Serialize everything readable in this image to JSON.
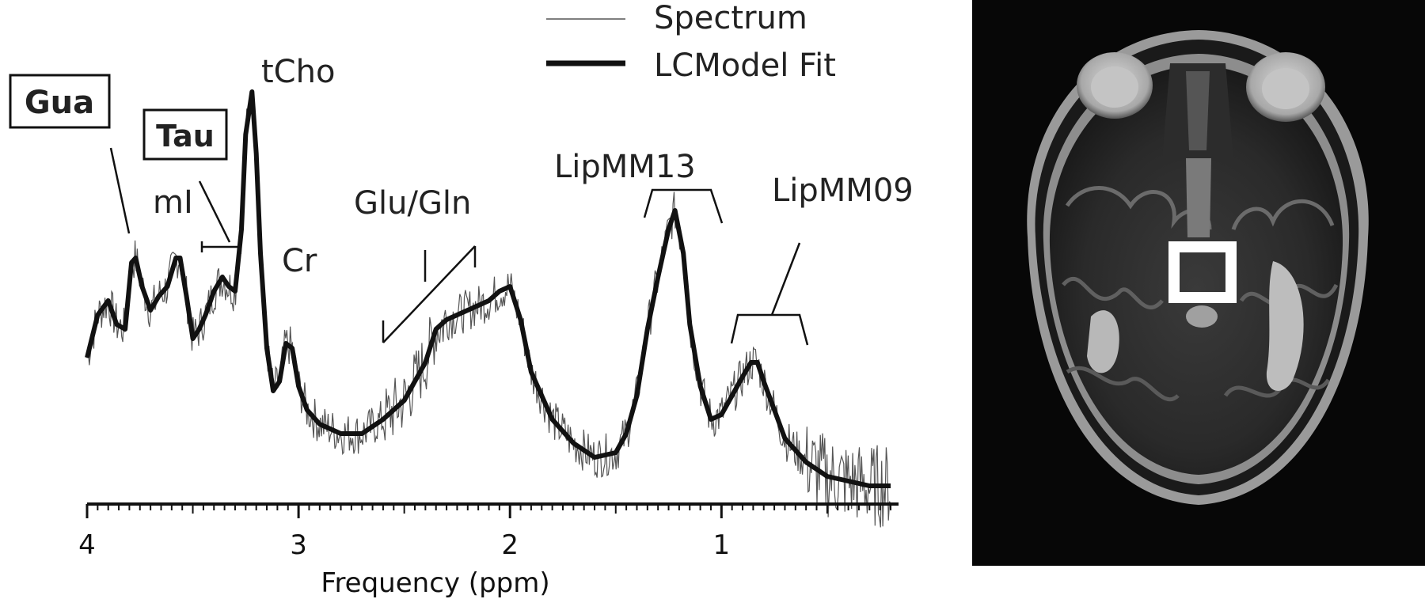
{
  "chart_data": {
    "type": "line",
    "xlabel": "Frequency (ppm)",
    "xlim": [
      4.0,
      0.2
    ],
    "x_reversed": true,
    "x_ticks": [
      4,
      3,
      2,
      1
    ],
    "series": [
      {
        "name": "Spectrum",
        "style": "thin",
        "color": "#555555"
      },
      {
        "name": "LCModel Fit",
        "style": "thick",
        "color": "#111111",
        "x": [
          4.0,
          3.95,
          3.9,
          3.86,
          3.82,
          3.79,
          3.77,
          3.74,
          3.7,
          3.66,
          3.62,
          3.58,
          3.56,
          3.53,
          3.5,
          3.47,
          3.44,
          3.4,
          3.36,
          3.33,
          3.3,
          3.27,
          3.25,
          3.22,
          3.2,
          3.18,
          3.15,
          3.12,
          3.09,
          3.06,
          3.03,
          3.0,
          2.96,
          2.9,
          2.8,
          2.7,
          2.6,
          2.5,
          2.45,
          2.4,
          2.35,
          2.3,
          2.2,
          2.1,
          2.05,
          2.0,
          1.95,
          1.9,
          1.8,
          1.7,
          1.6,
          1.5,
          1.45,
          1.4,
          1.35,
          1.3,
          1.25,
          1.22,
          1.18,
          1.15,
          1.1,
          1.05,
          1.0,
          0.95,
          0.9,
          0.86,
          0.83,
          0.8,
          0.75,
          0.7,
          0.6,
          0.5,
          0.4,
          0.3,
          0.2
        ],
        "y": [
          0.18,
          0.27,
          0.3,
          0.25,
          0.24,
          0.38,
          0.39,
          0.33,
          0.28,
          0.31,
          0.33,
          0.39,
          0.39,
          0.31,
          0.22,
          0.24,
          0.27,
          0.32,
          0.35,
          0.33,
          0.32,
          0.45,
          0.65,
          0.74,
          0.61,
          0.4,
          0.2,
          0.11,
          0.13,
          0.21,
          0.2,
          0.12,
          0.07,
          0.04,
          0.02,
          0.02,
          0.05,
          0.09,
          0.13,
          0.17,
          0.24,
          0.26,
          0.28,
          0.3,
          0.32,
          0.33,
          0.26,
          0.15,
          0.05,
          0.0,
          -0.03,
          -0.02,
          0.02,
          0.1,
          0.24,
          0.35,
          0.45,
          0.49,
          0.4,
          0.25,
          0.12,
          0.05,
          0.06,
          0.1,
          0.14,
          0.17,
          0.17,
          0.13,
          0.07,
          0.01,
          -0.04,
          -0.07,
          -0.08,
          -0.09,
          -0.09
        ]
      }
    ],
    "legend": [
      "Spectrum",
      "LCModel Fit"
    ],
    "legend_placement": "top-center",
    "annotations": [
      {
        "text": "Gua",
        "boxed": true,
        "bold": true
      },
      {
        "text": "Tau",
        "boxed": true,
        "bold": true
      },
      {
        "text": "mI"
      },
      {
        "text": "tCho"
      },
      {
        "text": "Cr"
      },
      {
        "text": "Glu/Gln"
      },
      {
        "text": "LipMM13"
      },
      {
        "text": "LipMM09"
      }
    ]
  },
  "inset_image": {
    "description_icon": "axial-brain-mri",
    "voxel_marker": "white-square"
  }
}
